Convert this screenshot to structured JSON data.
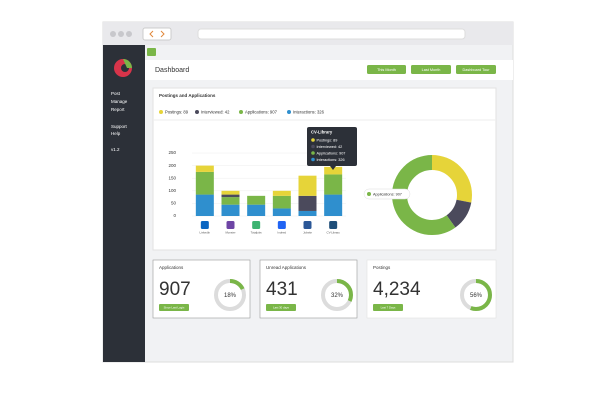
{
  "sidebar": {
    "menu": [
      "Post",
      "Manage",
      "Report",
      "Support",
      "Help",
      "v1.2"
    ]
  },
  "header": {
    "title": "Dashboard",
    "buttons": [
      "This Month",
      "Last Month",
      "Dashboard Tour"
    ]
  },
  "panel": {
    "title": "Postings and Applications"
  },
  "chart_data": [
    {
      "type": "bar",
      "stacked": true,
      "categories": [
        "LinkedIn",
        "Monster",
        "Totaljobs",
        "Indeed",
        "Jobsite",
        "CV-Library"
      ],
      "series": [
        {
          "name": "Postings: 89",
          "color": "#e6d439",
          "values": [
            25,
            15,
            0,
            20,
            80,
            30
          ]
        },
        {
          "name": "Interviewed: 42",
          "color": "#4b4a5c",
          "values": [
            0,
            10,
            0,
            0,
            60,
            0
          ]
        },
        {
          "name": "Applications: 907",
          "color": "#7ab648",
          "values": [
            90,
            30,
            35,
            50,
            0,
            80
          ]
        },
        {
          "name": "Interactions: 326",
          "color": "#2f8fce",
          "values": [
            85,
            45,
            45,
            30,
            20,
            85
          ]
        }
      ],
      "ylim": [
        0,
        250
      ],
      "yticks": [
        0,
        50,
        100,
        150,
        200,
        250
      ],
      "grid": true,
      "tooltip": {
        "title": "CV-Library",
        "items": [
          "Postings: 89",
          "Interviewed: 42",
          "Applications: 907",
          "Interactions: 326"
        ]
      }
    },
    {
      "type": "pie",
      "donut": true,
      "values": [
        28,
        12,
        60
      ],
      "colors": [
        "#e6d439",
        "#4b4a5c",
        "#7ab648"
      ],
      "label": "Applications: 907"
    }
  ],
  "cards": [
    {
      "title": "Applications",
      "value": "907",
      "percent": {
        "value": 18,
        "label": "18%"
      },
      "button": "Since Last Login"
    },
    {
      "title": "Unread Applications",
      "value": "431",
      "percent": {
        "value": 32,
        "label": "32%"
      },
      "button": "Last 30 days"
    },
    {
      "title": "Postings",
      "value": "4,234",
      "percent": {
        "value": 56,
        "label": "56%"
      },
      "button": "Last 7 Days"
    }
  ]
}
